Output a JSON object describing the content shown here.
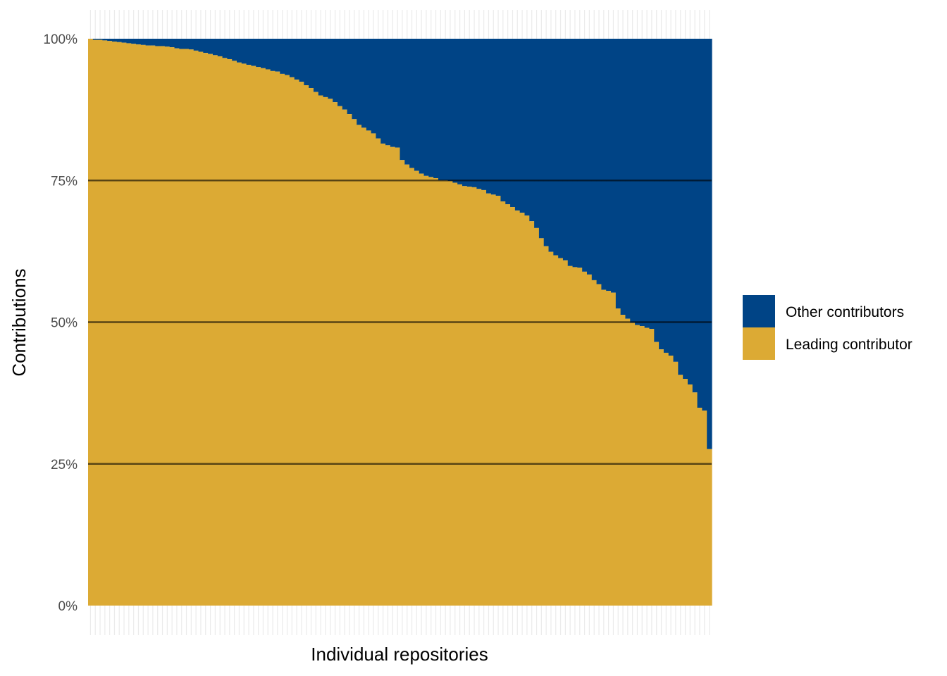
{
  "chart_data": {
    "type": "bar",
    "stacked": true,
    "percent_axis": true,
    "xlabel": "Individual repositories",
    "ylabel": "Contributions",
    "ylim": [
      0,
      100
    ],
    "yticks": [
      {
        "value": 0,
        "label": "0%"
      },
      {
        "value": 25,
        "label": "25%"
      },
      {
        "value": 50,
        "label": "50%"
      },
      {
        "value": 75,
        "label": "75%"
      },
      {
        "value": 100,
        "label": "100%"
      }
    ],
    "x_tick_labels": false,
    "grid": "horizontal major lines at 25%, 50%, 75%",
    "legend": {
      "position": "right",
      "entries": [
        {
          "name": "Other contributors",
          "color": "#004486"
        },
        {
          "name": "Leading contributor",
          "color": "#DCAA34"
        }
      ]
    },
    "series": [
      {
        "name": "Leading contributor",
        "color": "#DCAA34",
        "values": [
          100,
          99.8,
          99.8,
          99.7,
          99.6,
          99.5,
          99.4,
          99.3,
          99.2,
          99.1,
          99.0,
          98.9,
          98.8,
          98.8,
          98.7,
          98.7,
          98.6,
          98.5,
          98.3,
          98.2,
          98.2,
          98.1,
          97.9,
          97.7,
          97.5,
          97.3,
          97.1,
          96.9,
          96.6,
          96.4,
          96.1,
          95.8,
          95.6,
          95.4,
          95.2,
          95.0,
          94.8,
          94.6,
          94.3,
          94.2,
          93.8,
          93.6,
          93.2,
          92.8,
          92.4,
          91.8,
          91.3,
          90.6,
          90.0,
          89.7,
          89.4,
          88.8,
          88.1,
          87.5,
          86.7,
          85.8,
          84.8,
          84.3,
          83.8,
          83.3,
          82.4,
          81.5,
          81.2,
          80.9,
          80.8,
          78.6,
          77.8,
          77.2,
          76.7,
          76.2,
          75.8,
          75.6,
          75.4,
          75.0,
          75.0,
          74.9,
          74.6,
          74.3,
          74.0,
          73.9,
          73.8,
          73.5,
          73.3,
          72.7,
          72.5,
          72.3,
          71.3,
          70.8,
          70.3,
          69.7,
          69.3,
          68.8,
          67.8,
          66.6,
          64.8,
          63.4,
          62.4,
          61.8,
          61.3,
          60.9,
          59.9,
          59.7,
          59.6,
          58.9,
          58.4,
          57.4,
          56.7,
          55.7,
          55.5,
          55.2,
          52.4,
          51.3,
          50.6,
          49.9,
          49.5,
          49.3,
          49.0,
          48.8,
          46.5,
          45.2,
          44.6,
          44.1,
          43.0,
          40.7,
          40.0,
          39.0,
          37.6,
          34.9,
          34.4,
          27.6
        ]
      },
      {
        "name": "Other contributors",
        "color": "#004486",
        "values": "remainder to 100%"
      }
    ]
  }
}
